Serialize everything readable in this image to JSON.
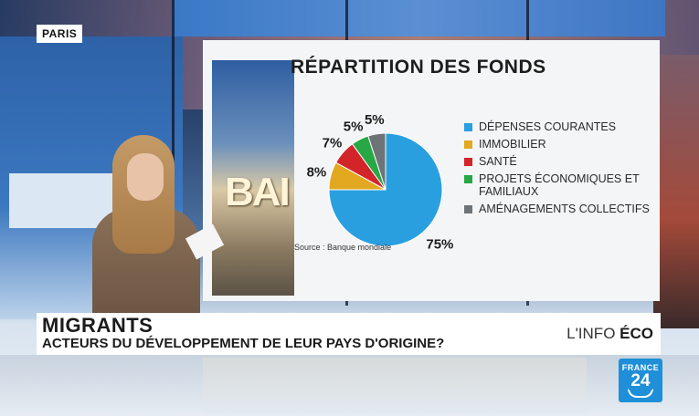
{
  "location": "PARIS",
  "panel": {
    "photo_text": "BAI",
    "source": "Source : Banque mondiale"
  },
  "chart_data": {
    "type": "pie",
    "title": "RÉPARTITION DES FONDS",
    "categories": [
      "DÉPENSES COURANTES",
      "IMMOBILIER",
      "SANTÉ",
      "PROJETS ÉCONOMIQUES ET FAMILIAUX",
      "AMÉNAGEMENTS COLLECTIFS"
    ],
    "values": [
      75,
      8,
      7,
      5,
      5
    ],
    "labels": [
      "75%",
      "8%",
      "7%",
      "5%",
      "5%"
    ],
    "colors": [
      "#2a9fe0",
      "#e2a81f",
      "#d3242a",
      "#27a844",
      "#6e7378"
    ],
    "legend_position": "right"
  },
  "lower_third": {
    "headline": "MIGRANTS",
    "subhead": "ACTEURS DU DÉVELOPPEMENT DE LEUR PAYS D'ORIGINE?",
    "program_prefix": "L'INFO",
    "program_name": "ÉCO"
  },
  "logo": {
    "word": "FRANCE",
    "number": "24"
  }
}
